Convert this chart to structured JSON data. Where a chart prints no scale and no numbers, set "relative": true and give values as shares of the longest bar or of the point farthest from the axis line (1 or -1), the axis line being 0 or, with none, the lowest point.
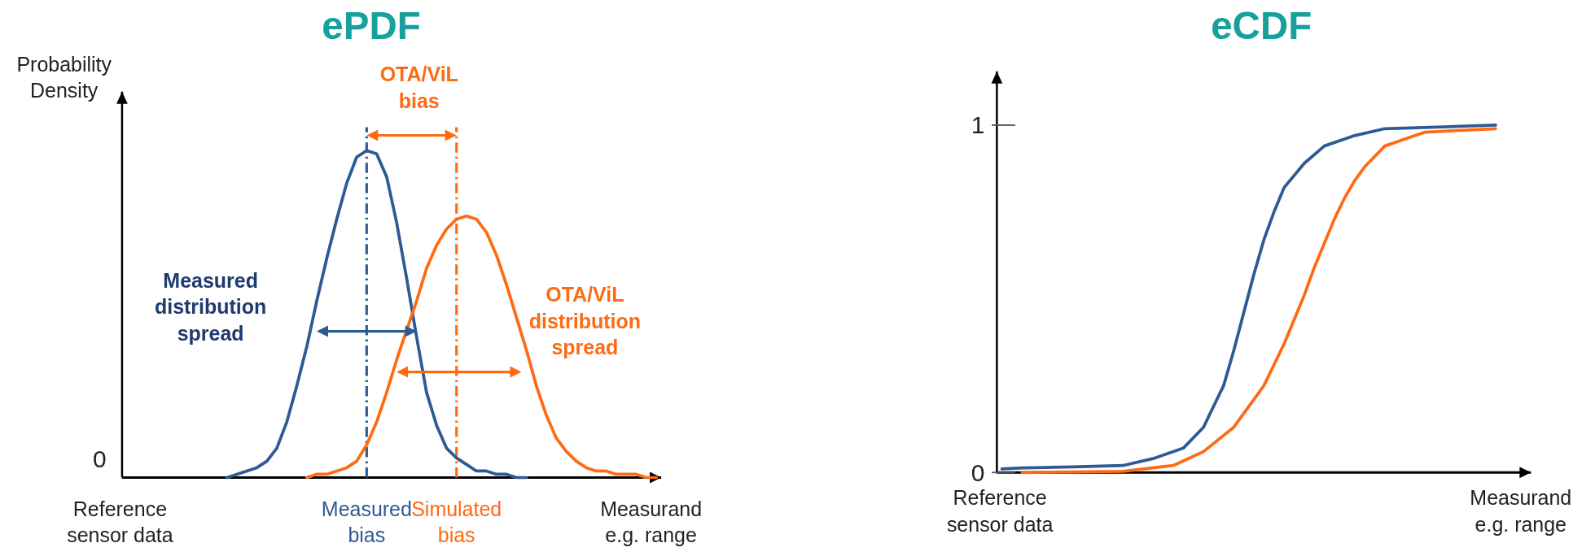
{
  "chart_data": [
    {
      "type": "line",
      "title": "ePDF",
      "ylabel": "Probability Density",
      "xlabel": "Measurand e.g. range",
      "relative": true,
      "categories": [
        null,
        null,
        null,
        null,
        null,
        null,
        null,
        null,
        null,
        null,
        null,
        null,
        null,
        null,
        null,
        null,
        null,
        null,
        null,
        null,
        null,
        null,
        null,
        null,
        "Measured bias",
        null,
        null,
        null,
        null,
        null,
        null,
        null,
        null,
        "Simulated bias",
        null,
        null,
        null,
        null,
        null,
        null,
        null,
        null,
        null,
        null,
        null,
        null,
        null,
        null,
        null,
        null,
        null,
        null,
        null,
        null
      ],
      "annotations": [
        "Reference sensor data",
        "0",
        "OTA/ViL bias",
        "Measured distribution spread",
        "OTA/ViL distribution spread"
      ],
      "ref_lines": [
        {
          "axis": "x",
          "value": "Measured bias",
          "color": "#2e5a94",
          "line_style": "dashdot"
        },
        {
          "axis": "x",
          "value": "Simulated bias",
          "color": "#ff6a13",
          "line_style": "dashdot"
        }
      ],
      "series": [
        {
          "color": "#2e5a94",
          "values": [
            null,
            null,
            null,
            null,
            null,
            null,
            null,
            null,
            null,
            null,
            0,
            0.01,
            0.02,
            0.03,
            0.05,
            0.09,
            0.17,
            0.28,
            0.4,
            0.54,
            0.67,
            0.79,
            0.9,
            0.98,
            1,
            0.99,
            0.92,
            0.78,
            0.61,
            0.43,
            0.26,
            0.16,
            0.09,
            0.06,
            0.04,
            0.02,
            0.02,
            0.01,
            0.01,
            0,
            0,
            null,
            null,
            null,
            null,
            null,
            null,
            null,
            null,
            null,
            null,
            null,
            null,
            null
          ]
        },
        {
          "color": "#ff6a13",
          "values": [
            null,
            null,
            null,
            null,
            null,
            null,
            null,
            null,
            null,
            null,
            null,
            null,
            null,
            null,
            null,
            null,
            null,
            null,
            0,
            0.01,
            0.01,
            0.02,
            0.03,
            0.05,
            0.1,
            0.17,
            0.26,
            0.36,
            0.45,
            0.54,
            0.64,
            0.71,
            0.76,
            0.79,
            0.8,
            0.79,
            0.75,
            0.68,
            0.59,
            0.49,
            0.39,
            0.28,
            0.19,
            0.12,
            0.08,
            0.05,
            0.03,
            0.02,
            0.02,
            0.01,
            0.01,
            0.01,
            0,
            0
          ]
        }
      ]
    },
    {
      "type": "line",
      "title": "eCDF",
      "xlabel": "Measurand e.g. range",
      "ylim": [
        0,
        1.155
      ],
      "yticks": [
        0,
        1
      ],
      "tick_labels": "y",
      "categories": [
        null,
        null,
        null,
        null,
        null,
        null,
        null,
        null,
        null,
        null,
        null,
        null,
        null,
        null,
        null,
        null,
        null,
        null,
        null,
        null,
        null,
        null,
        null,
        null,
        null,
        null,
        null,
        null,
        null,
        null,
        null,
        null,
        null,
        null,
        null,
        null,
        null,
        null,
        null,
        null,
        null,
        null,
        null,
        null,
        null,
        null,
        null,
        null,
        null,
        null,
        null,
        null,
        null
      ],
      "annotations": [
        "Reference sensor data"
      ],
      "series": [
        {
          "color": "#2e5a94",
          "values": [
            0.01,
            null,
            0.013,
            null,
            null,
            null,
            null,
            0.016,
            null,
            null,
            null,
            null,
            0.02,
            null,
            null,
            0.04,
            null,
            null,
            0.07,
            null,
            0.13,
            null,
            0.25,
            0.35,
            0.46,
            0.57,
            0.67,
            0.75,
            0.82,
            null,
            0.89,
            null,
            0.94,
            null,
            null,
            0.97,
            null,
            null,
            0.99,
            null,
            null,
            null,
            null,
            null,
            null,
            null,
            null,
            null,
            null,
            1,
            null,
            null,
            null
          ]
        },
        {
          "color": "#ff6a13",
          "values": [
            null,
            null,
            0,
            null,
            null,
            null,
            null,
            null,
            null,
            null,
            null,
            null,
            0.003,
            null,
            null,
            null,
            null,
            0.02,
            null,
            null,
            0.06,
            null,
            null,
            0.13,
            0.17,
            0.21,
            0.25,
            0.31,
            0.37,
            0.44,
            0.51,
            0.59,
            0.66,
            0.73,
            0.79,
            0.84,
            0.88,
            null,
            0.94,
            null,
            0.96,
            null,
            0.98,
            null,
            null,
            null,
            null,
            null,
            null,
            0.99,
            null,
            null,
            null
          ]
        }
      ]
    }
  ]
}
